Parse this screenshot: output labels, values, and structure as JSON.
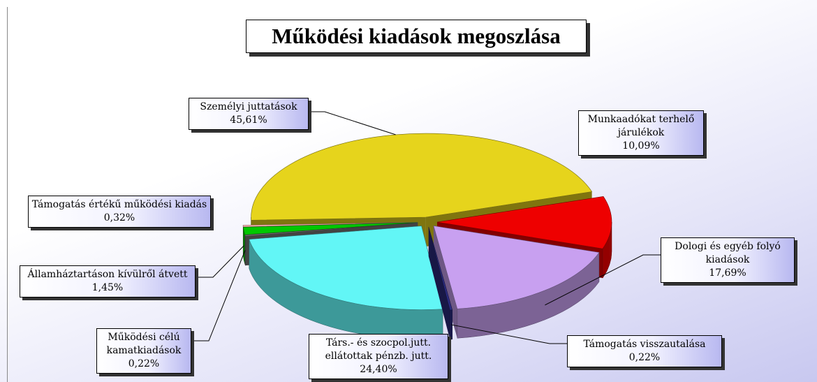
{
  "chart_data": {
    "type": "pie",
    "title": "Működési kiadások megoszlása",
    "categories": [
      "Személyi juttatások",
      "Munkaadókat terhelő járulékok",
      "Dologi és egyéb folyó kiadások",
      "Támogatás visszautalása",
      "Társ.- és szocpol.jutt. ellátottak pénzb. jutt.",
      "Működési célú kamatkiadások",
      "Államháztartáson kívülről átvett",
      "Támogatás értékű működési kiadás"
    ],
    "values": [
      45.61,
      10.09,
      17.69,
      0.22,
      24.4,
      0.22,
      1.45,
      0.32
    ],
    "value_labels": [
      "45,61%",
      "10,09%",
      "17,69%",
      "0,22%",
      "24,40%",
      "0,22%",
      "1,45%",
      "0,32%"
    ],
    "colors": [
      "#e6d41c",
      "#ee0000",
      "#c8a0f0",
      "#2c2c80",
      "#62f6f6",
      "#7a7a7a",
      "#00c800",
      "#ffb4b4"
    ]
  }
}
